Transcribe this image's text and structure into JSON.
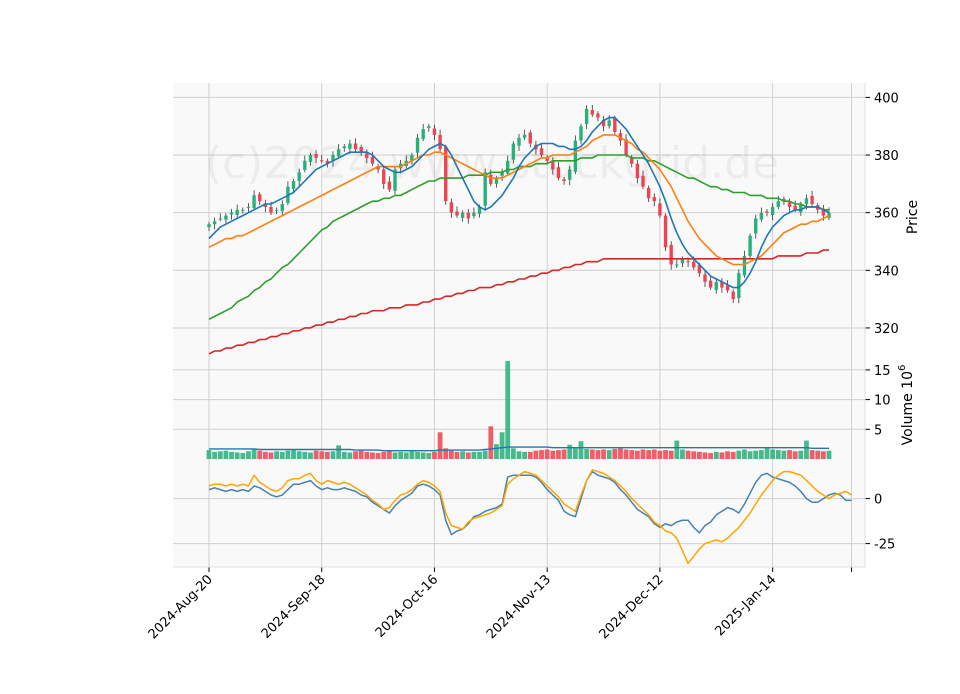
{
  "watermark": "(c)2024 www.stockgrid.de",
  "chart_data": [
    {
      "type": "candlestick",
      "panel": "price",
      "ylabel": "Price",
      "ylim": [
        312,
        405
      ],
      "yticks": [
        320,
        340,
        360,
        380,
        400
      ],
      "x_tick_labels": [
        "2024-Aug-20",
        "2024-Sep-18",
        "2024-Oct-16",
        "2024-Nov-13",
        "2024-Dec-12",
        "2025-Jan-14"
      ],
      "x_tick_index": [
        0,
        20,
        40,
        60,
        80,
        100
      ],
      "grid": true,
      "colors": {
        "up": "#26b07a",
        "down": "#f0434f",
        "ma_fast": "#1f77b4",
        "ma_mid": "#ff7f0e",
        "ma_slow": "#2ca02c",
        "ma_long": "#d62728"
      },
      "closes": [
        356,
        357,
        358,
        359,
        360,
        361,
        361,
        362,
        366,
        364,
        362,
        360,
        361,
        363,
        369,
        371,
        374,
        378,
        380,
        379,
        378,
        377,
        380,
        382,
        383,
        384,
        382,
        381,
        379,
        377,
        375,
        370,
        368,
        375,
        377,
        378,
        380,
        386,
        389,
        390,
        387,
        382,
        364,
        360,
        359,
        360,
        358,
        360,
        362,
        374,
        370,
        372,
        374,
        378,
        384,
        386,
        387,
        384,
        382,
        380,
        378,
        375,
        372,
        371,
        375,
        385,
        390,
        396,
        394,
        393,
        390,
        392,
        388,
        385,
        380,
        377,
        372,
        369,
        365,
        364,
        359,
        348,
        342,
        342,
        344,
        343,
        341,
        339,
        336,
        334,
        336,
        334,
        333,
        330,
        339,
        345,
        352,
        358,
        360,
        360,
        362,
        364,
        364,
        362,
        361,
        363,
        365,
        363,
        361,
        359,
        360
      ],
      "ma_fast": [
        351,
        353,
        355,
        356,
        357,
        358,
        359,
        360,
        361,
        362,
        363,
        363,
        364,
        365,
        366,
        367,
        369,
        371,
        373,
        375,
        376,
        377,
        378,
        379,
        380,
        381,
        381,
        381,
        381,
        380,
        378,
        376,
        375,
        374,
        374,
        375,
        376,
        378,
        380,
        382,
        383,
        384,
        383,
        380,
        376,
        372,
        368,
        364,
        362,
        361,
        362,
        364,
        366,
        369,
        372,
        376,
        379,
        381,
        383,
        384,
        384,
        384,
        383,
        383,
        382,
        382,
        383,
        385,
        388,
        390,
        392,
        393,
        393,
        391,
        389,
        386,
        383,
        380,
        377,
        373,
        369,
        364,
        358,
        353,
        349,
        346,
        344,
        342,
        340,
        338,
        337,
        336,
        335,
        334,
        334,
        336,
        339,
        343,
        348,
        352,
        355,
        357,
        359,
        360,
        361,
        361,
        362,
        362,
        362,
        361,
        360
      ],
      "ma_mid": [
        348,
        349,
        350,
        351,
        351,
        352,
        352,
        353,
        354,
        355,
        356,
        357,
        358,
        359,
        360,
        361,
        362,
        363,
        364,
        365,
        366,
        367,
        368,
        369,
        370,
        371,
        372,
        373,
        374,
        375,
        376,
        376,
        376,
        376,
        376,
        377,
        378,
        379,
        380,
        380,
        381,
        381,
        380,
        379,
        378,
        377,
        376,
        375,
        374,
        373,
        372,
        372,
        372,
        373,
        374,
        375,
        376,
        377,
        378,
        379,
        379,
        380,
        380,
        380,
        380,
        381,
        382,
        383,
        385,
        386,
        387,
        387,
        387,
        386,
        385,
        384,
        382,
        381,
        379,
        377,
        375,
        372,
        369,
        365,
        361,
        357,
        354,
        351,
        349,
        347,
        345,
        344,
        343,
        342,
        342,
        342,
        343,
        344,
        345,
        347,
        349,
        351,
        353,
        354,
        355,
        356,
        356,
        357,
        357,
        358,
        359
      ],
      "ma_slow": [
        323,
        324,
        325,
        326,
        327,
        329,
        330,
        331,
        333,
        334,
        336,
        337,
        339,
        341,
        342,
        344,
        346,
        348,
        350,
        352,
        354,
        355,
        357,
        358,
        359,
        360,
        361,
        362,
        363,
        364,
        364,
        365,
        365,
        366,
        366,
        367,
        368,
        369,
        370,
        371,
        371,
        372,
        372,
        372,
        372,
        372,
        373,
        373,
        373,
        373,
        374,
        374,
        374,
        375,
        375,
        376,
        376,
        376,
        377,
        377,
        377,
        378,
        378,
        378,
        378,
        378,
        379,
        379,
        379,
        380,
        380,
        380,
        380,
        380,
        380,
        379,
        379,
        379,
        378,
        378,
        377,
        376,
        375,
        374,
        373,
        372,
        372,
        371,
        370,
        369,
        369,
        368,
        368,
        367,
        367,
        367,
        366,
        366,
        366,
        365,
        365,
        365,
        364,
        364,
        363,
        363,
        362,
        362,
        362,
        361,
        361
      ],
      "ma_long": [
        311,
        312,
        312,
        313,
        313,
        314,
        314,
        315,
        315,
        316,
        316,
        317,
        317,
        318,
        318,
        319,
        319,
        320,
        320,
        321,
        321,
        322,
        322,
        323,
        323,
        324,
        324,
        325,
        325,
        326,
        326,
        326,
        327,
        327,
        327,
        328,
        328,
        328,
        329,
        329,
        330,
        330,
        331,
        331,
        332,
        332,
        333,
        333,
        334,
        334,
        334,
        335,
        335,
        336,
        336,
        337,
        337,
        338,
        338,
        339,
        339,
        340,
        340,
        341,
        341,
        342,
        342,
        343,
        343,
        343,
        344,
        344,
        344,
        344,
        344,
        344,
        344,
        344,
        344,
        344,
        344,
        344,
        344,
        344,
        344,
        344,
        344,
        344,
        344,
        344,
        344,
        344,
        344,
        344,
        344,
        344,
        344,
        344,
        344,
        344,
        344,
        345,
        345,
        345,
        345,
        345,
        346,
        346,
        346,
        347,
        347
      ]
    },
    {
      "type": "bar",
      "panel": "volume",
      "ylabel": "Volume  10",
      "ylabel_exponent": "6",
      "ylim": [
        0,
        16.5
      ],
      "yticks": [
        5,
        10,
        15
      ],
      "values": [
        1.5,
        1.2,
        1.3,
        1.4,
        1.2,
        1.1,
        1.0,
        1.3,
        1.6,
        1.4,
        1.2,
        1.1,
        1.3,
        1.2,
        1.4,
        1.6,
        1.3,
        1.2,
        1.1,
        1.4,
        1.3,
        1.2,
        1.3,
        2.3,
        1.2,
        1.1,
        1.3,
        1.4,
        1.2,
        1.1,
        1.0,
        1.2,
        1.3,
        1.1,
        1.2,
        1.1,
        1.3,
        1.2,
        1.1,
        1.0,
        1.2,
        4.5,
        1.8,
        1.4,
        1.2,
        1.3,
        1.1,
        1.2,
        1.2,
        1.4,
        5.5,
        2.5,
        4.5,
        16.5,
        1.8,
        1.3,
        1.2,
        1.2,
        1.4,
        1.5,
        1.6,
        1.4,
        1.5,
        1.6,
        2.4,
        1.8,
        3.0,
        1.7,
        1.6,
        1.5,
        1.6,
        1.5,
        1.7,
        1.8,
        1.6,
        1.5,
        1.4,
        1.6,
        1.5,
        1.6,
        1.4,
        1.5,
        1.4,
        3.1,
        1.6,
        1.4,
        1.3,
        1.2,
        1.1,
        1.0,
        1.2,
        1.1,
        1.3,
        1.2,
        1.4,
        1.6,
        1.3,
        1.4,
        1.5,
        2.0,
        1.6,
        1.5,
        1.4,
        1.5,
        1.3,
        1.4,
        3.1,
        1.5,
        1.4,
        1.3,
        1.4
      ],
      "volume_ma": [
        1.7,
        1.7,
        1.7,
        1.7,
        1.7,
        1.7,
        1.7,
        1.7,
        1.7,
        1.6,
        1.6,
        1.6,
        1.6,
        1.6,
        1.6,
        1.6,
        1.6,
        1.6,
        1.6,
        1.6,
        1.6,
        1.6,
        1.6,
        1.6,
        1.6,
        1.6,
        1.5,
        1.5,
        1.5,
        1.5,
        1.5,
        1.4,
        1.4,
        1.4,
        1.4,
        1.4,
        1.4,
        1.4,
        1.4,
        1.4,
        1.4,
        1.5,
        1.5,
        1.5,
        1.5,
        1.5,
        1.5,
        1.5,
        1.5,
        1.6,
        1.7,
        1.8,
        1.9,
        2.0,
        2.0,
        2.0,
        2.0,
        2.0,
        2.0,
        2.0,
        2.0,
        1.9,
        1.9,
        1.9,
        1.9,
        1.9,
        1.9,
        1.9,
        1.9,
        1.9,
        1.9,
        1.9,
        1.9,
        1.9,
        1.9,
        1.9,
        1.9,
        1.9,
        1.9,
        1.9,
        1.9,
        1.9,
        1.9,
        1.9,
        1.9,
        1.9,
        1.9,
        1.9,
        1.9,
        1.9,
        1.9,
        1.9,
        1.9,
        1.9,
        1.9,
        1.9,
        1.9,
        1.9,
        1.9,
        1.9,
        1.9,
        1.9,
        1.9,
        1.9,
        1.9,
        1.9,
        1.9,
        1.8,
        1.8,
        1.8,
        1.8
      ],
      "colors": {
        "up": "#26b07a",
        "down": "#f0434f",
        "ma": "#1f77b4"
      }
    },
    {
      "type": "line",
      "panel": "oscillator",
      "ylim": [
        -38,
        22
      ],
      "yticks": [
        0,
        -25
      ],
      "series": [
        {
          "color": "#4682b4",
          "values": [
            5,
            6,
            5,
            4,
            5,
            4,
            5,
            4,
            7,
            6,
            4,
            2,
            1,
            2,
            5,
            8,
            8,
            9,
            10,
            7,
            5,
            6,
            5,
            5,
            6,
            5,
            4,
            2,
            1,
            -2,
            -4,
            -6,
            -8,
            -4,
            -1,
            1,
            3,
            7,
            8,
            7,
            5,
            2,
            -12,
            -20,
            -18,
            -17,
            -14,
            -10,
            -9,
            -7,
            -6,
            -5,
            -3,
            12,
            13,
            13,
            13,
            13,
            12,
            9,
            5,
            2,
            -1,
            -7,
            -9,
            -10,
            0,
            10,
            15,
            13,
            12,
            11,
            9,
            5,
            2,
            -2,
            -6,
            -8,
            -10,
            -14,
            -16,
            -14,
            -15,
            -13,
            -12,
            -12,
            -16,
            -19,
            -15,
            -13,
            -9,
            -7,
            -5,
            -6,
            -8,
            -3,
            3,
            9,
            13,
            14,
            12,
            11,
            10,
            9,
            7,
            4,
            0,
            -2,
            -2,
            0,
            2,
            3,
            2,
            -1,
            -1
          ]
        },
        {
          "color": "#ffa500",
          "values": [
            7,
            8,
            8,
            7,
            8,
            7,
            8,
            7,
            13,
            9,
            7,
            5,
            4,
            6,
            10,
            11,
            11,
            13,
            14,
            10,
            8,
            10,
            9,
            8,
            9,
            8,
            6,
            4,
            2,
            -1,
            -3,
            -6,
            -5,
            -1,
            2,
            3,
            5,
            8,
            10,
            9,
            7,
            4,
            -8,
            -15,
            -16,
            -17,
            -13,
            -11,
            -10,
            -9,
            -8,
            -6,
            -4,
            8,
            11,
            13,
            15,
            14,
            13,
            10,
            7,
            4,
            1,
            -3,
            -5,
            -7,
            2,
            10,
            16,
            15,
            14,
            12,
            10,
            7,
            4,
            0,
            -3,
            -6,
            -9,
            -13,
            -15,
            -18,
            -19,
            -22,
            -29,
            -36,
            -32,
            -28,
            -25,
            -24,
            -23,
            -24,
            -22,
            -19,
            -16,
            -12,
            -8,
            -3,
            2,
            6,
            10,
            13,
            15,
            15,
            14,
            13,
            10,
            7,
            4,
            2,
            0,
            2,
            3,
            4,
            2
          ]
        }
      ]
    }
  ]
}
